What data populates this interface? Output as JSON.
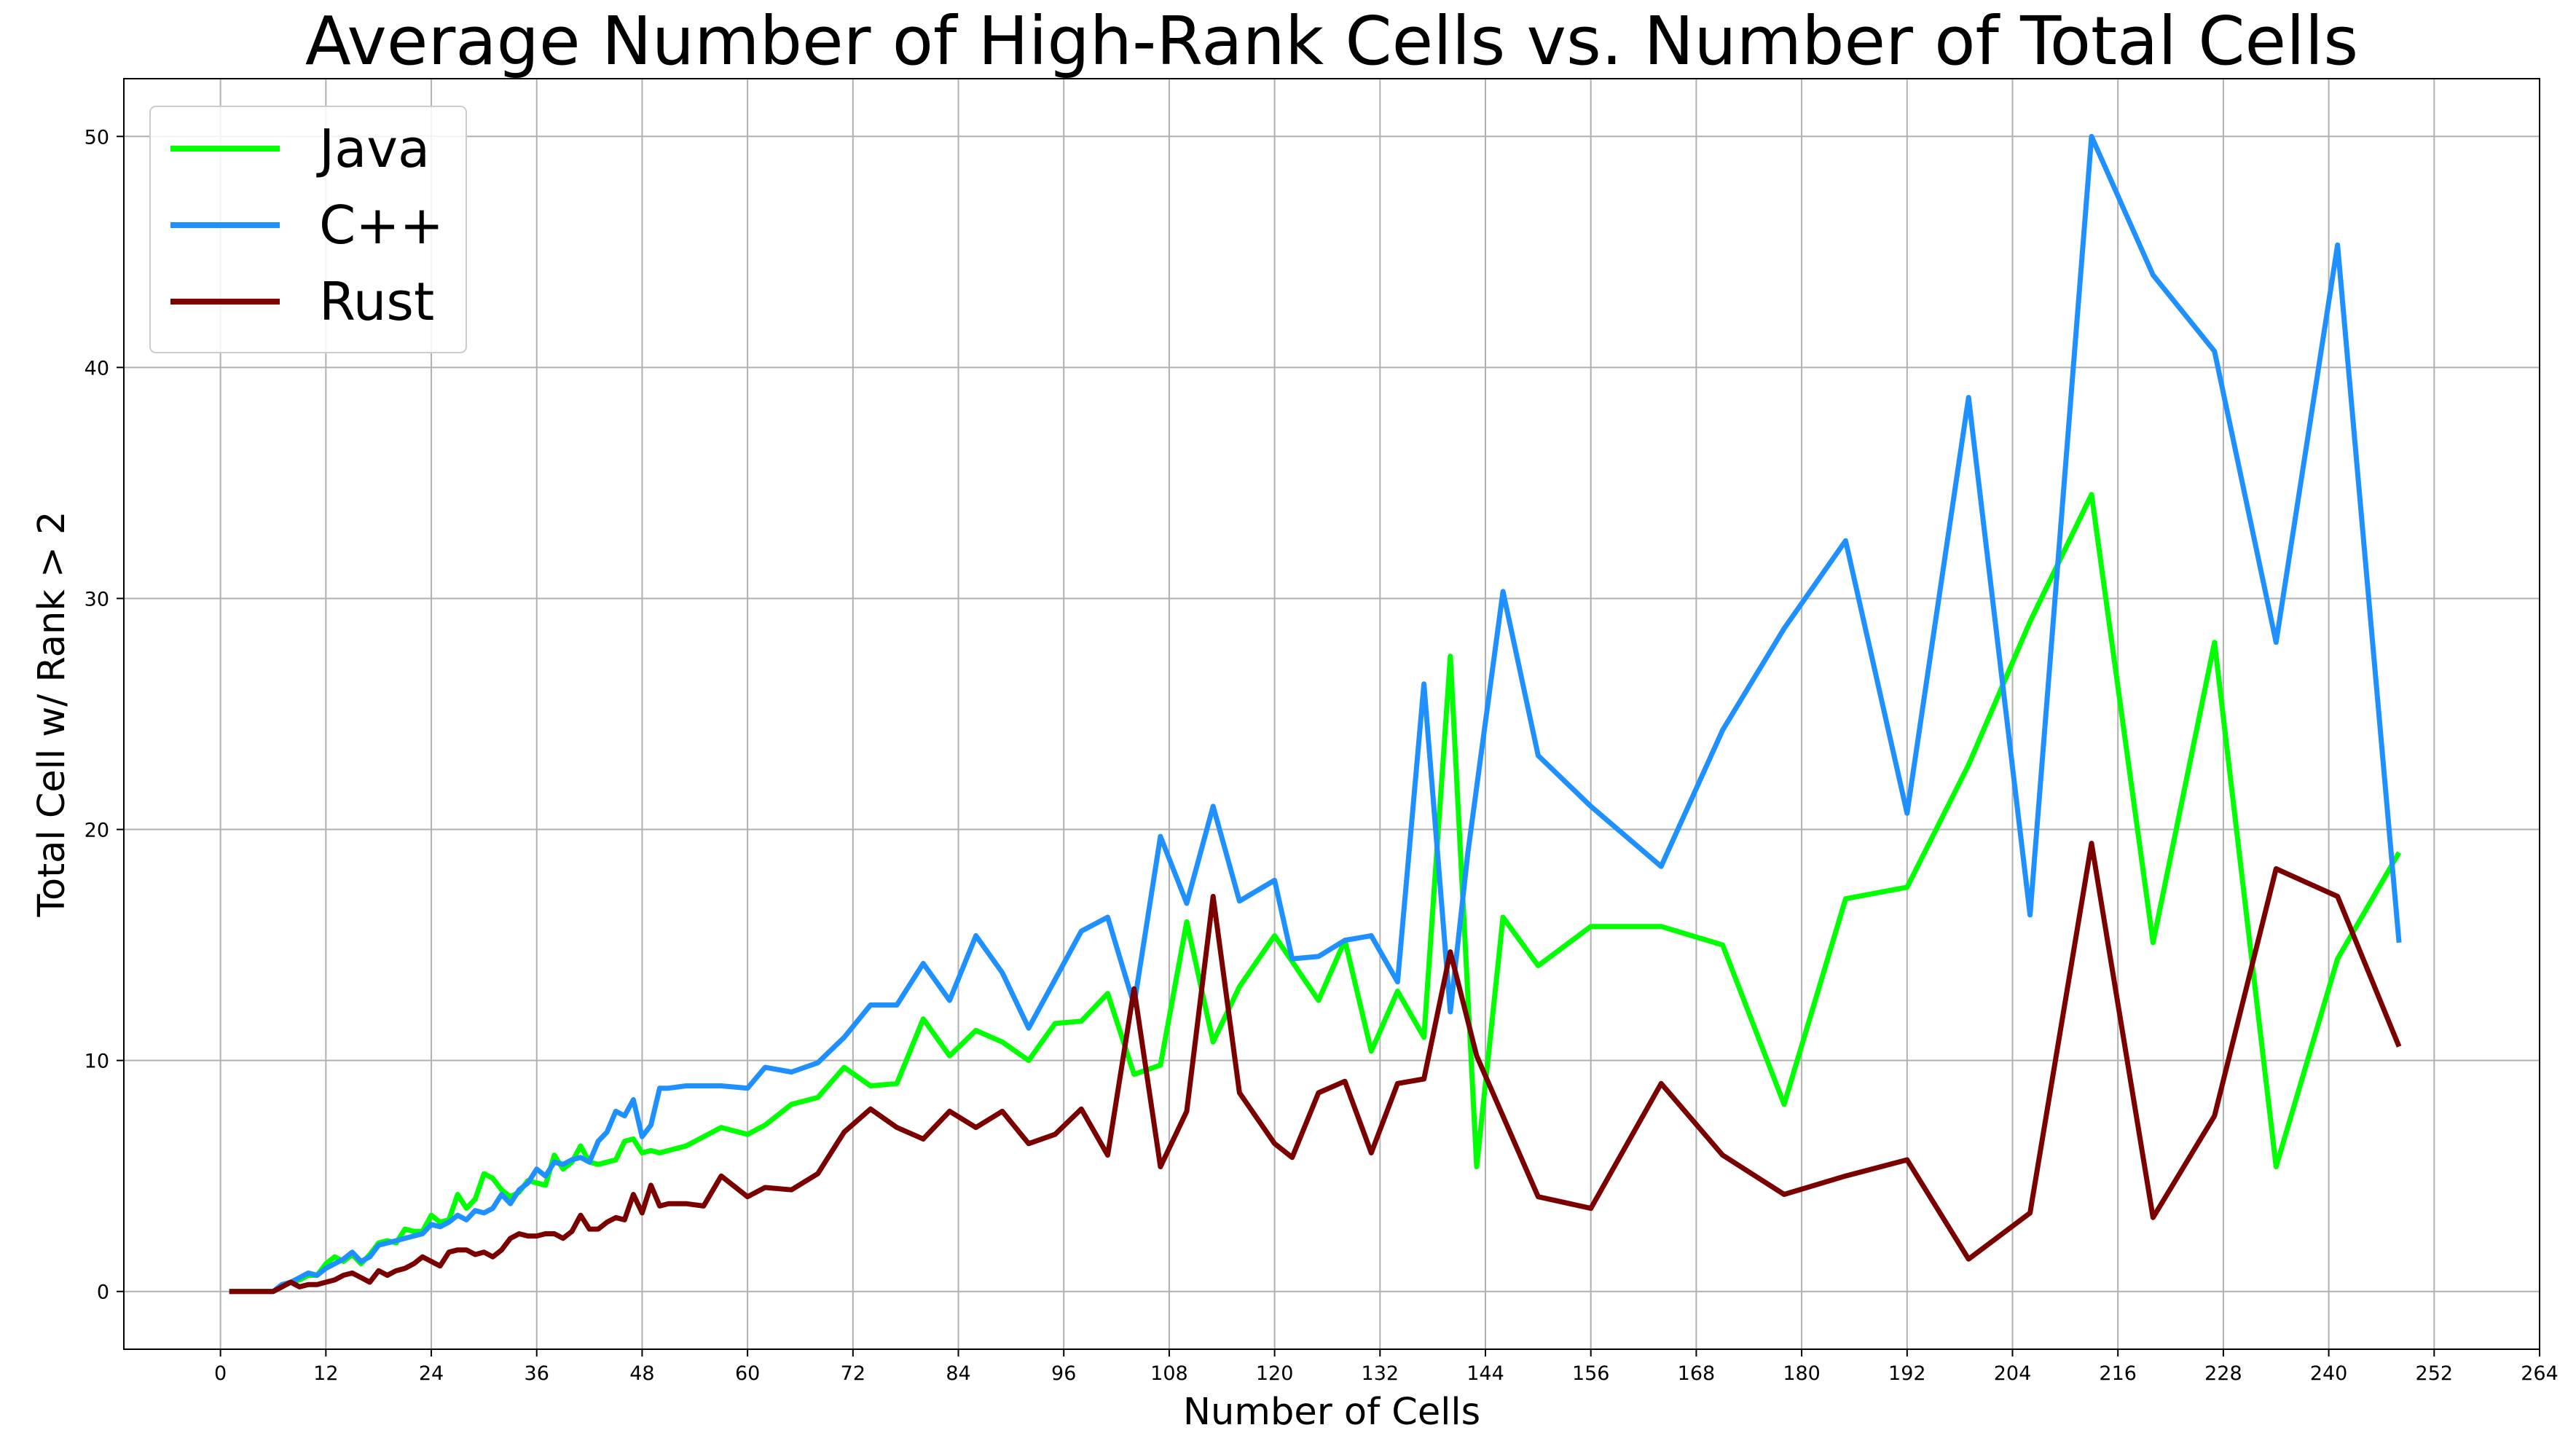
{
  "chart_data": {
    "type": "line",
    "title": "Average Number of High-Rank Cells vs. Number of Total Cells",
    "xlabel": "Number of Cells",
    "ylabel": "Total Cell w/ Rank > 2",
    "xlim": [
      -11,
      264
    ],
    "ylim": [
      -2.5,
      52.5
    ],
    "xticks": [
      0,
      12,
      24,
      36,
      48,
      60,
      72,
      84,
      96,
      108,
      120,
      132,
      144,
      156,
      168,
      180,
      192,
      204,
      216,
      228,
      240,
      252,
      264
    ],
    "yticks": [
      0,
      10,
      20,
      30,
      40,
      50
    ],
    "grid": true,
    "legend_position": "upper-left",
    "series": [
      {
        "name": "Java",
        "color": "#00ff00",
        "x": [
          1,
          3,
          5,
          6,
          7,
          8,
          9,
          10,
          11,
          12,
          13,
          14,
          15,
          16,
          17,
          18,
          19,
          20,
          21,
          22,
          23,
          24,
          25,
          26,
          27,
          28,
          29,
          30,
          31,
          32,
          33,
          34,
          35,
          36,
          37,
          38,
          39,
          40,
          41,
          42,
          43,
          44,
          45,
          46,
          47,
          48,
          49,
          50,
          51,
          53,
          55,
          57,
          60,
          62,
          65,
          68,
          71,
          74,
          77,
          80,
          83,
          86,
          89,
          92,
          95,
          98,
          101,
          104,
          107,
          110,
          113,
          116,
          120,
          125,
          128,
          131,
          134,
          137,
          140,
          143,
          146,
          150,
          156,
          164,
          171,
          178,
          185,
          192,
          199,
          206,
          213,
          220,
          227,
          234,
          241,
          248
        ],
        "y": [
          0,
          0,
          0,
          0,
          0.2,
          0.4,
          0.5,
          0.7,
          0.7,
          1.2,
          1.5,
          1.3,
          1.6,
          1.2,
          1.6,
          2.1,
          2.2,
          2.1,
          2.7,
          2.6,
          2.6,
          3.3,
          3.0,
          3.1,
          4.2,
          3.6,
          4.0,
          5.1,
          4.9,
          4.4,
          4.1,
          4.3,
          4.8,
          4.7,
          4.6,
          5.9,
          5.3,
          5.6,
          6.3,
          5.6,
          5.5,
          5.6,
          5.7,
          6.5,
          6.6,
          6.0,
          6.1,
          6.0,
          6.1,
          6.3,
          6.7,
          7.1,
          6.8,
          7.2,
          8.1,
          8.4,
          9.7,
          8.9,
          9.0,
          11.8,
          10.2,
          11.3,
          10.8,
          10.0,
          11.6,
          11.7,
          12.9,
          9.4,
          9.8,
          16.0,
          10.8,
          13.2,
          15.4,
          12.6,
          15.2,
          10.4,
          13.0,
          11.0,
          27.5,
          5.4,
          16.2,
          14.1,
          15.8,
          15.8,
          15.0,
          8.1,
          17.0,
          17.5,
          22.8,
          29.0,
          34.5,
          15.1,
          28.1,
          5.4,
          14.4,
          19.0
        ]
      },
      {
        "name": "C++",
        "color": "#1e90ff",
        "x": [
          1,
          3,
          5,
          6,
          7,
          8,
          9,
          10,
          11,
          12,
          13,
          14,
          15,
          16,
          17,
          18,
          19,
          20,
          21,
          22,
          23,
          24,
          25,
          26,
          27,
          28,
          29,
          30,
          31,
          32,
          33,
          34,
          35,
          36,
          37,
          38,
          39,
          40,
          41,
          42,
          43,
          44,
          45,
          46,
          47,
          48,
          49,
          50,
          51,
          53,
          55,
          57,
          60,
          62,
          65,
          68,
          71,
          74,
          77,
          80,
          83,
          86,
          89,
          92,
          95,
          98,
          101,
          104,
          107,
          110,
          113,
          116,
          120,
          122,
          125,
          128,
          131,
          134,
          137,
          140,
          142,
          146,
          150,
          156,
          164,
          171,
          178,
          185,
          192,
          199,
          206,
          213,
          220,
          227,
          234,
          241,
          248
        ],
        "y": [
          0,
          0,
          0,
          0,
          0.3,
          0.4,
          0.6,
          0.8,
          0.7,
          1.0,
          1.2,
          1.4,
          1.7,
          1.3,
          1.5,
          2.0,
          2.1,
          2.2,
          2.3,
          2.4,
          2.5,
          2.9,
          2.8,
          3.0,
          3.3,
          3.1,
          3.5,
          3.4,
          3.6,
          4.2,
          3.8,
          4.4,
          4.7,
          5.3,
          5.0,
          5.6,
          5.5,
          5.7,
          5.8,
          5.6,
          6.5,
          6.9,
          7.8,
          7.6,
          8.3,
          6.7,
          7.2,
          8.8,
          8.8,
          8.9,
          8.9,
          8.9,
          8.8,
          9.7,
          9.5,
          9.9,
          11.0,
          12.4,
          12.4,
          14.2,
          12.6,
          15.4,
          13.8,
          11.4,
          13.5,
          15.6,
          16.2,
          12.4,
          19.7,
          16.8,
          21.0,
          16.9,
          17.8,
          14.4,
          14.5,
          15.2,
          15.4,
          13.4,
          26.3,
          12.1,
          19.0,
          30.3,
          23.2,
          21.0,
          18.4,
          24.3,
          28.7,
          32.5,
          20.7,
          38.7,
          16.3,
          50.0,
          44.0,
          40.7,
          28.1,
          45.3,
          15.1
        ]
      },
      {
        "name": "Rust",
        "color": "#7b0000",
        "x": [
          1,
          3,
          5,
          6,
          7,
          8,
          9,
          10,
          11,
          12,
          13,
          14,
          15,
          16,
          17,
          18,
          19,
          20,
          21,
          22,
          23,
          24,
          25,
          26,
          27,
          28,
          29,
          30,
          31,
          32,
          33,
          34,
          35,
          36,
          37,
          38,
          39,
          40,
          41,
          42,
          43,
          44,
          45,
          46,
          47,
          48,
          49,
          50,
          51,
          53,
          55,
          57,
          60,
          62,
          65,
          68,
          71,
          74,
          77,
          80,
          83,
          86,
          89,
          92,
          95,
          98,
          101,
          104,
          107,
          110,
          113,
          116,
          120,
          122,
          125,
          128,
          131,
          134,
          137,
          140,
          143,
          150,
          156,
          164,
          171,
          178,
          185,
          192,
          199,
          206,
          213,
          220,
          227,
          234,
          241,
          248
        ],
        "y": [
          0,
          0,
          0,
          0,
          0.2,
          0.4,
          0.2,
          0.3,
          0.3,
          0.4,
          0.5,
          0.7,
          0.8,
          0.6,
          0.4,
          0.9,
          0.7,
          0.9,
          1.0,
          1.2,
          1.5,
          1.3,
          1.1,
          1.7,
          1.8,
          1.8,
          1.6,
          1.7,
          1.5,
          1.8,
          2.3,
          2.5,
          2.4,
          2.4,
          2.5,
          2.5,
          2.3,
          2.6,
          3.3,
          2.7,
          2.7,
          3.0,
          3.2,
          3.1,
          4.2,
          3.4,
          4.6,
          3.7,
          3.8,
          3.8,
          3.7,
          5.0,
          4.1,
          4.5,
          4.4,
          5.1,
          6.9,
          7.9,
          7.1,
          6.6,
          7.8,
          7.1,
          7.8,
          6.4,
          6.8,
          7.9,
          5.9,
          13.1,
          5.4,
          7.8,
          17.1,
          8.6,
          6.4,
          5.8,
          8.6,
          9.1,
          6.0,
          9.0,
          9.2,
          14.7,
          10.2,
          4.1,
          3.6,
          9.0,
          5.9,
          4.2,
          5.0,
          5.7,
          1.4,
          3.4,
          19.4,
          3.2,
          7.6,
          18.3,
          17.1,
          10.6
        ]
      }
    ]
  }
}
